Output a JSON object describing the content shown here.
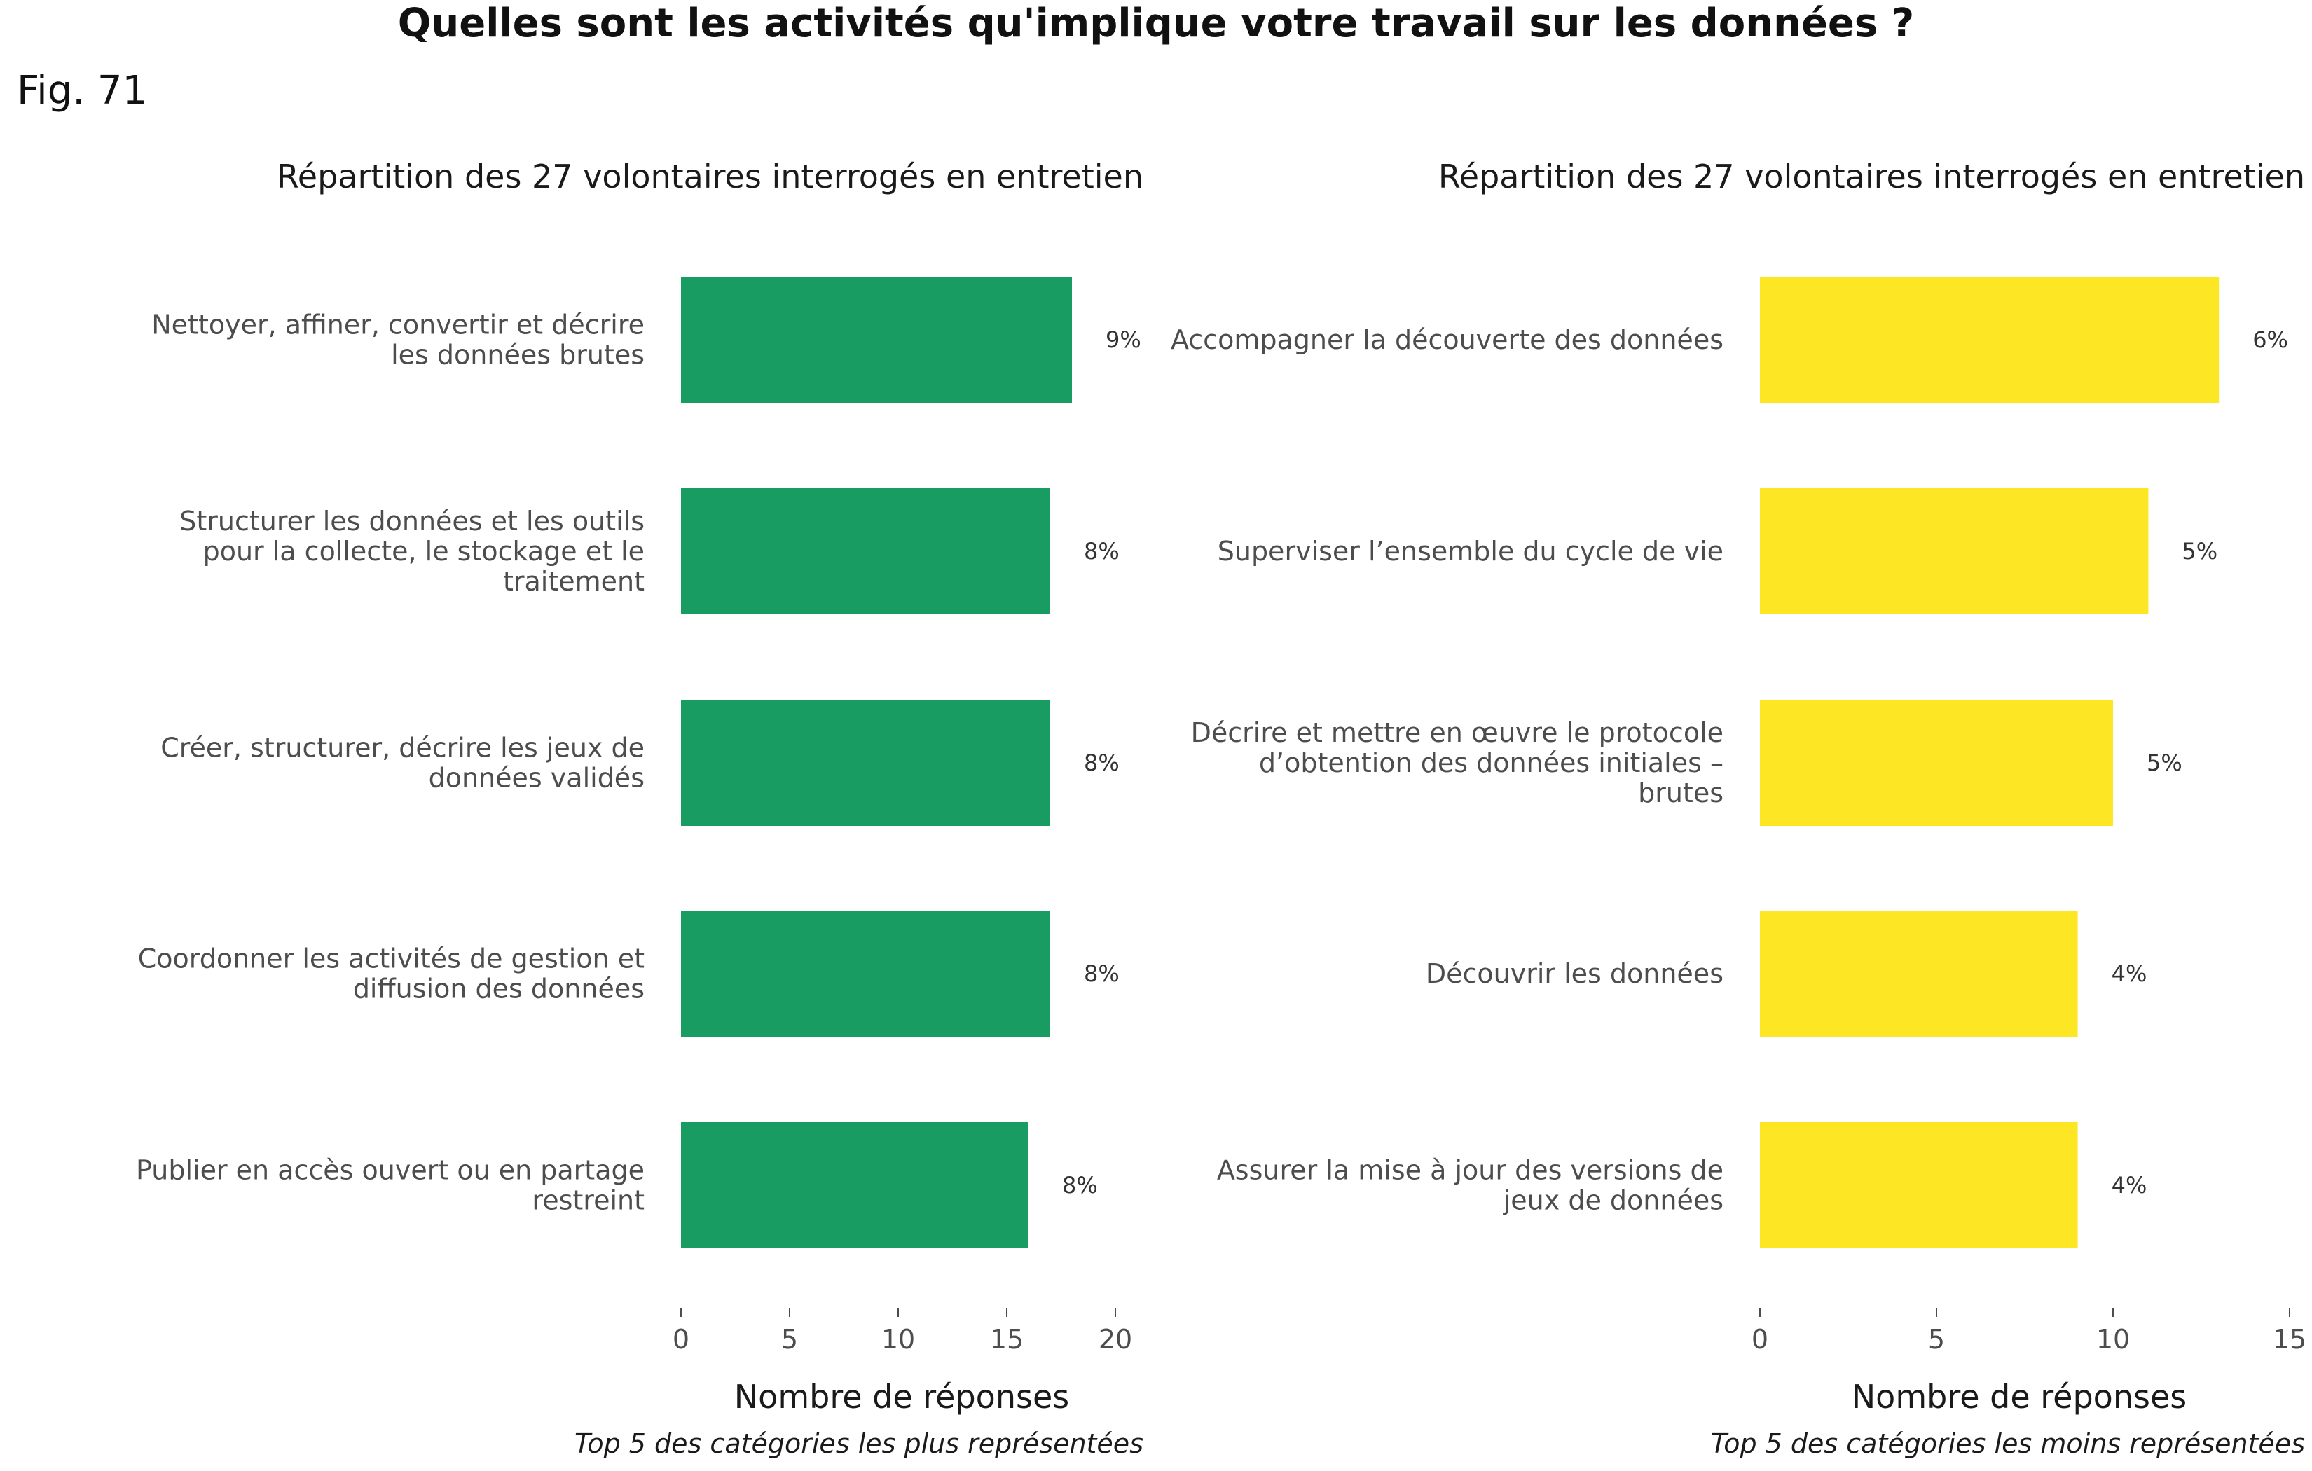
{
  "title": "Quelles sont les activités qu'implique votre travail sur les données ?",
  "fig_label": "Fig. 71",
  "chart_data": [
    {
      "type": "bar",
      "orientation": "horizontal",
      "subtitle": "Répartition des 27 volontaires interrogés en entretien",
      "xlabel": "Nombre de réponses",
      "caption": "Top 5 des catégories les plus représentées",
      "color": "#189C62",
      "xlim": [
        0,
        20
      ],
      "xticks": [
        0,
        5,
        10,
        15,
        20
      ],
      "grid": false,
      "categories": [
        [
          "Nettoyer, affiner, convertir et décrire",
          "les données brutes"
        ],
        [
          "Structurer les données et les outils",
          "pour la collecte, le stockage et le",
          "traitement"
        ],
        [
          "Créer, structurer, décrire les jeux de",
          "données validés"
        ],
        [
          "Coordonner les activités de gestion et",
          "diffusion des données"
        ],
        [
          "Publier en accès ouvert ou en partage",
          "restreint"
        ]
      ],
      "values": [
        18,
        17,
        17,
        17,
        16
      ],
      "data_labels": [
        "9%",
        "8%",
        "8%",
        "8%",
        "8%"
      ]
    },
    {
      "type": "bar",
      "orientation": "horizontal",
      "subtitle": "Répartition des 27 volontaires interrogés en entretien",
      "xlabel": "Nombre de réponses",
      "caption": "Top 5 des catégories les moins représentées",
      "color": "#FDE725",
      "xlim": [
        0,
        15
      ],
      "xticks": [
        0,
        5,
        10,
        15
      ],
      "grid": false,
      "categories": [
        [
          "Accompagner la découverte des données"
        ],
        [
          "Superviser l’ensemble du cycle de vie"
        ],
        [
          "Décrire et mettre en œuvre le protocole",
          "d’obtention des données initiales –",
          "brutes"
        ],
        [
          "Découvrir les données"
        ],
        [
          "Assurer la mise à jour des versions de",
          "jeux de données"
        ]
      ],
      "values": [
        13,
        11,
        10,
        9,
        9
      ],
      "data_labels": [
        "6%",
        "5%",
        "5%",
        "4%",
        "4%"
      ]
    }
  ]
}
